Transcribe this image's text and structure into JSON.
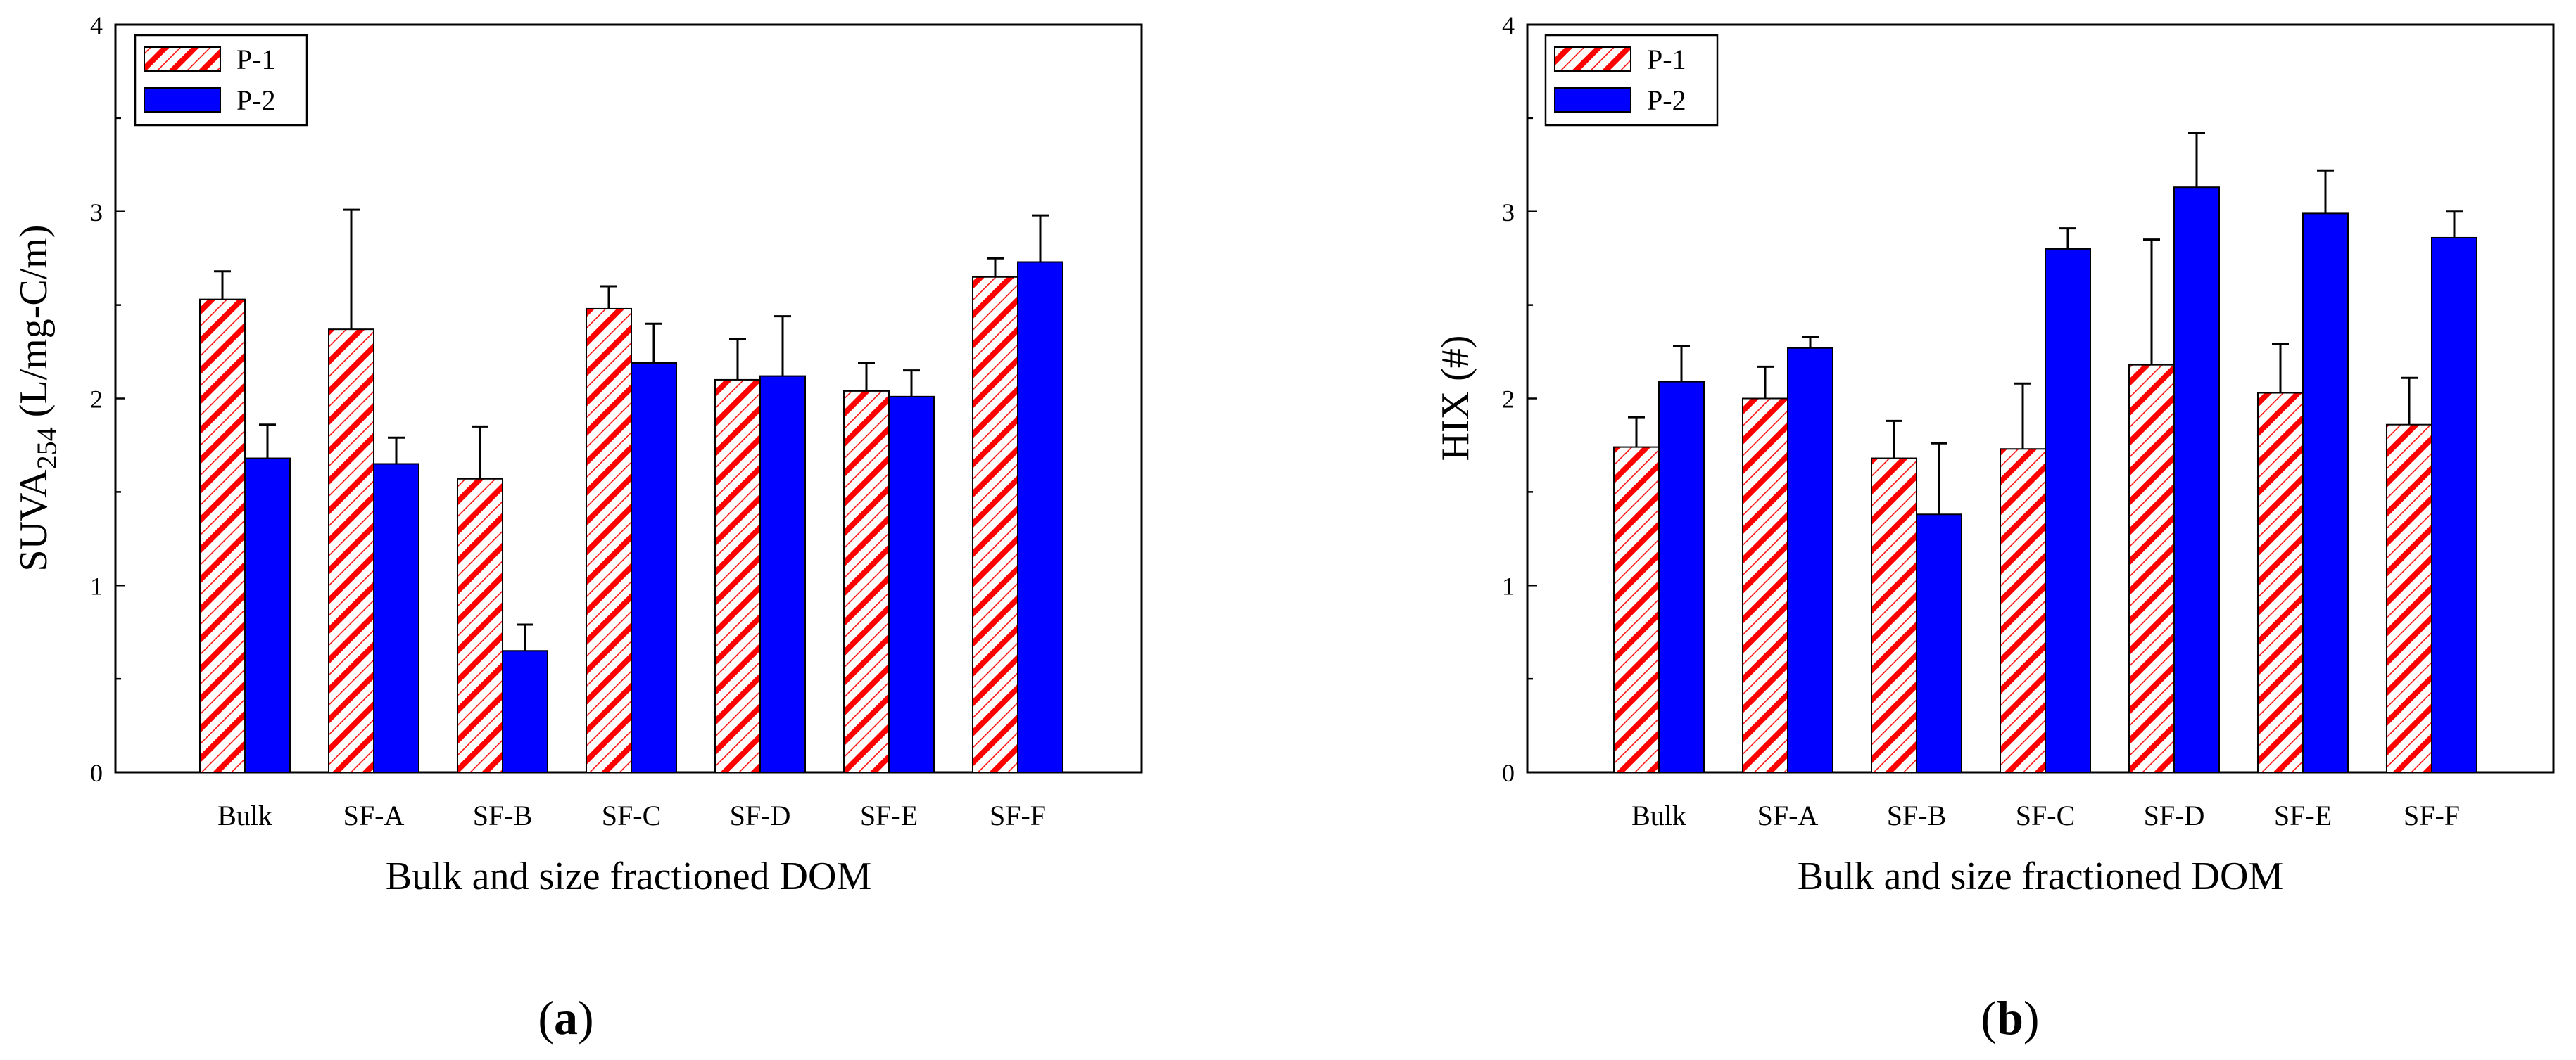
{
  "figure": {
    "panels": [
      {
        "id": "a",
        "panel_label": {
          "open": "(",
          "letter": "a",
          "close": ")"
        },
        "ylabel": {
          "main": "SUVA",
          "sub": "254",
          "rest": " (L/mg-C/m)"
        },
        "xlabel": "Bulk and size fractioned DOM"
      },
      {
        "id": "b",
        "panel_label": {
          "open": "(",
          "letter": "b",
          "close": ")"
        },
        "ylabel": {
          "main": "HIX (#)",
          "sub": "",
          "rest": ""
        },
        "xlabel": "Bulk and size fractioned DOM"
      }
    ]
  },
  "colors": {
    "p1_hatch": "#ff0000",
    "p1_bg": "#ffffff",
    "p2_fill": "#0000ff",
    "axis": "#000000"
  },
  "chart_data": [
    {
      "type": "bar",
      "title": "",
      "xlabel": "Bulk and size fractioned DOM",
      "ylabel": "SUVA254 (L/mg-C/m)",
      "categories": [
        "Bulk",
        "SF-A",
        "SF-B",
        "SF-C",
        "SF-D",
        "SF-E",
        "SF-F"
      ],
      "ylim": [
        0,
        4
      ],
      "yticks": [
        "0",
        "1",
        "2",
        "3",
        "4"
      ],
      "legend_position": "top-left",
      "series": [
        {
          "name": "P-1",
          "pattern": "hatched-red",
          "values": [
            2.53,
            2.37,
            1.57,
            2.48,
            2.1,
            2.04,
            2.65
          ],
          "error_upper": [
            0.15,
            0.64,
            0.28,
            0.12,
            0.22,
            0.15,
            0.1
          ]
        },
        {
          "name": "P-2",
          "pattern": "solid-blue",
          "values": [
            1.68,
            1.65,
            0.65,
            2.19,
            2.12,
            2.01,
            2.73
          ],
          "error_upper": [
            0.18,
            0.14,
            0.14,
            0.21,
            0.32,
            0.14,
            0.25
          ]
        }
      ]
    },
    {
      "type": "bar",
      "title": "",
      "xlabel": "Bulk and size fractioned DOM",
      "ylabel": "HIX (#)",
      "categories": [
        "Bulk",
        "SF-A",
        "SF-B",
        "SF-C",
        "SF-D",
        "SF-E",
        "SF-F"
      ],
      "ylim": [
        0,
        4
      ],
      "yticks": [
        "0",
        "1",
        "2",
        "3",
        "4"
      ],
      "legend_position": "top-left",
      "series": [
        {
          "name": "P-1",
          "pattern": "hatched-red",
          "values": [
            1.74,
            2.0,
            1.68,
            1.73,
            2.18,
            2.03,
            1.86
          ],
          "error_upper": [
            0.16,
            0.17,
            0.2,
            0.35,
            0.67,
            0.26,
            0.25
          ]
        },
        {
          "name": "P-2",
          "pattern": "solid-blue",
          "values": [
            2.09,
            2.27,
            1.38,
            2.8,
            3.13,
            2.99,
            2.86
          ],
          "error_upper": [
            0.19,
            0.06,
            0.38,
            0.11,
            0.29,
            0.23,
            0.14
          ]
        }
      ]
    }
  ]
}
